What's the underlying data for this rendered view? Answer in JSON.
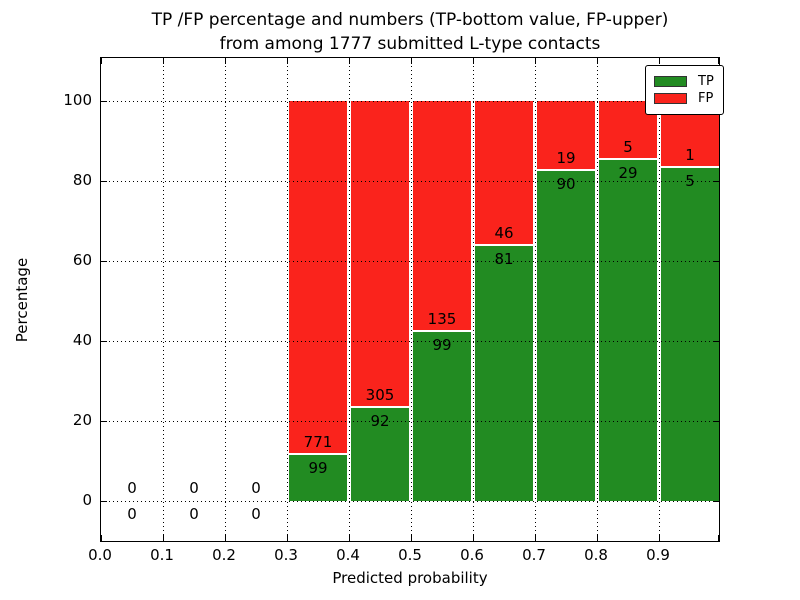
{
  "title": {
    "line1": "TP /FP percentage and numbers (TP-bottom value, FP-upper)",
    "line2": "from among 1777 submitted L-type contacts"
  },
  "chart_data": {
    "type": "bar",
    "stacked": true,
    "normalized": "each bin scaled to 100%",
    "title": "TP /FP percentage and numbers (TP-bottom value, FP-upper) from among 1777 submitted L-type contacts",
    "xlabel": "Predicted probability",
    "ylabel": "Percentage",
    "xlim": [
      0.0,
      1.0
    ],
    "ylim": [
      -10,
      110
    ],
    "grid": "dotted",
    "legend_position": "upper right",
    "bin_edges": [
      0.0,
      0.1,
      0.2,
      0.3,
      0.4,
      0.5,
      0.6,
      0.7,
      0.8,
      0.9,
      1.0
    ],
    "x_tick_labels": [
      "0.0",
      "0.1",
      "0.2",
      "0.3",
      "0.4",
      "0.5",
      "0.6",
      "0.7",
      "0.8",
      "0.9"
    ],
    "y_tick_values": [
      0,
      20,
      40,
      60,
      80,
      100
    ],
    "series": [
      {
        "name": "TP",
        "color": "#228b22",
        "counts": [
          0,
          0,
          0,
          99,
          92,
          99,
          81,
          90,
          29,
          5
        ]
      },
      {
        "name": "FP",
        "color": "#fa231c",
        "counts": [
          0,
          0,
          0,
          771,
          305,
          135,
          46,
          19,
          5,
          1
        ]
      }
    ],
    "tp_percent_per_bin": [
      0,
      0,
      0,
      11.38,
      23.17,
      42.31,
      63.78,
      82.57,
      85.29,
      83.33
    ],
    "total_contacts": 1777,
    "legend": {
      "entries": [
        {
          "label": "TP",
          "color": "#228b22"
        },
        {
          "label": "FP",
          "color": "#fa231c"
        }
      ]
    }
  }
}
